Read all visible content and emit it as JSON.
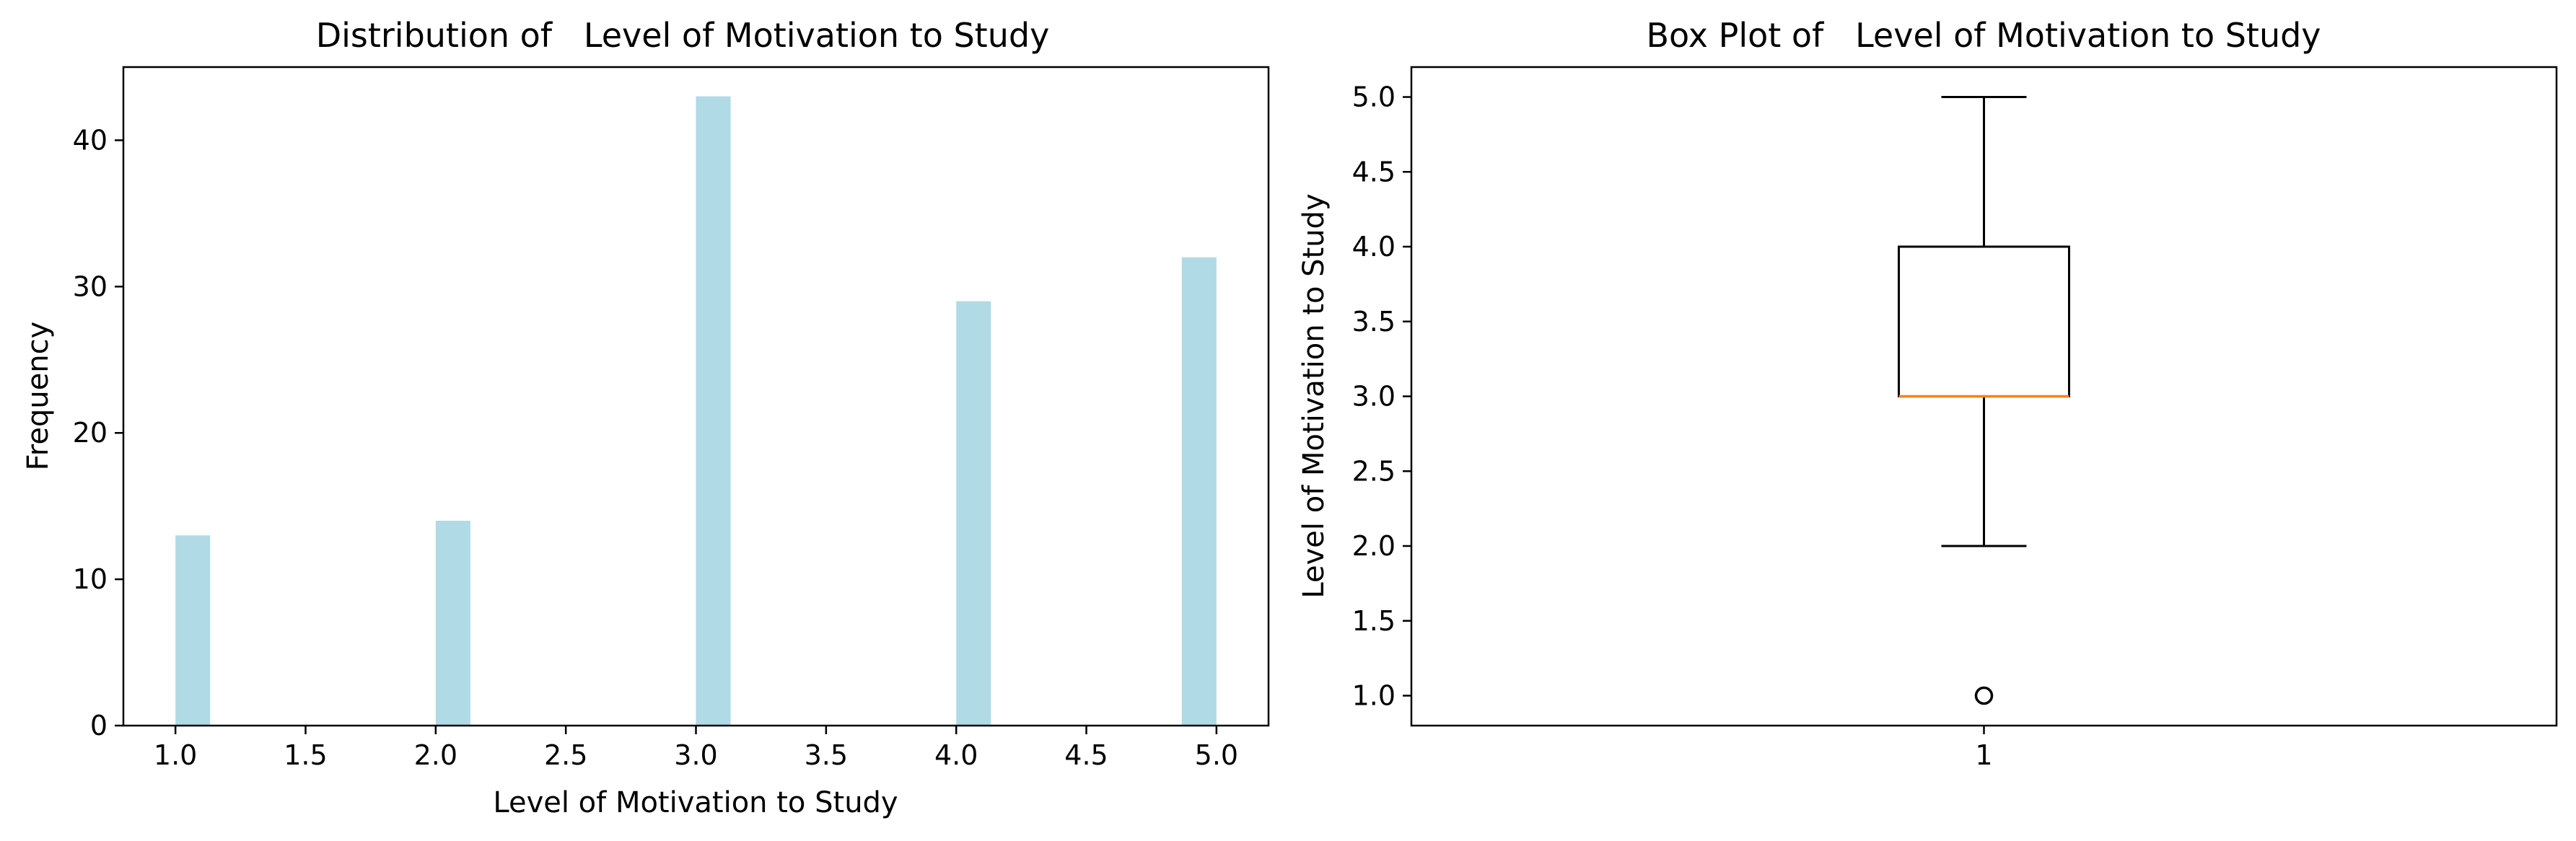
{
  "chart_data": [
    {
      "type": "bar",
      "subtype": "histogram",
      "title": "Distribution of   Level of Motivation to Study",
      "xlabel": "Level of Motivation to Study",
      "ylabel": "Frequency",
      "xlim": [
        0.8,
        5.2
      ],
      "ylim": [
        0,
        45
      ],
      "xticks": [
        "1.0",
        "1.5",
        "2.0",
        "2.5",
        "3.0",
        "3.5",
        "4.0",
        "4.5",
        "5.0"
      ],
      "yticks": [
        "0",
        "10",
        "20",
        "30",
        "40"
      ],
      "bins": [
        {
          "x": 1.0,
          "value": 13
        },
        {
          "x": 2.0,
          "value": 14
        },
        {
          "x": 3.0,
          "value": 43
        },
        {
          "x": 4.0,
          "value": 29
        },
        {
          "x": 5.0,
          "value": 32
        }
      ],
      "bar_color": "#add8e6",
      "grid": false
    },
    {
      "type": "box",
      "title": "Box Plot of   Level of Motivation to Study",
      "xlabel": "",
      "ylabel": "Level of Motivation to Study",
      "xticks": [
        "1"
      ],
      "ylim": [
        0.8,
        5.2
      ],
      "yticks": [
        "1.0",
        "1.5",
        "2.0",
        "2.5",
        "3.0",
        "3.5",
        "4.0",
        "4.5",
        "5.0"
      ],
      "box": {
        "whisker_low": 2.0,
        "q1": 3.0,
        "median": 3.0,
        "q3": 4.0,
        "whisker_high": 5.0,
        "outliers": [
          1.0
        ]
      },
      "median_color": "#ff7f0e",
      "grid": false
    }
  ]
}
